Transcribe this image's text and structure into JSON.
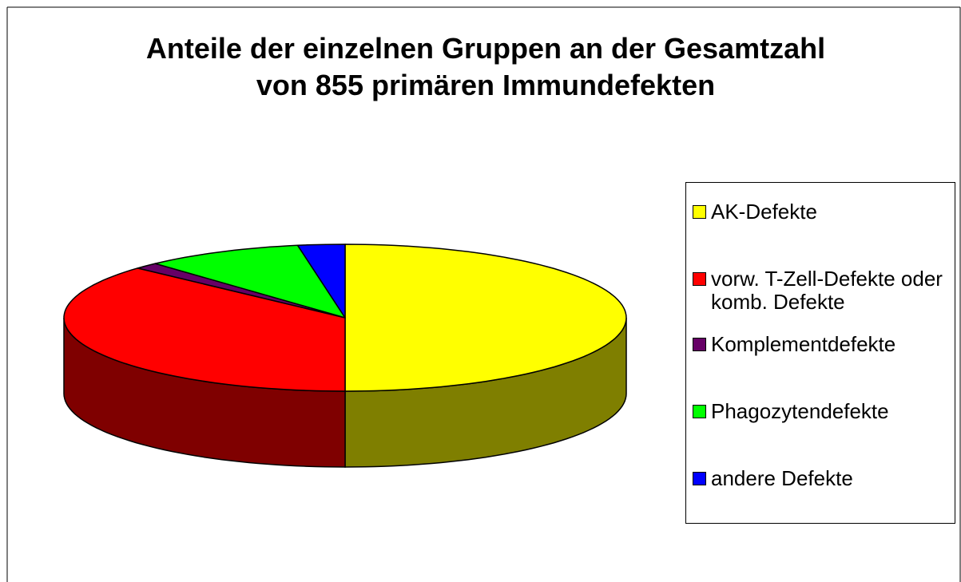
{
  "chart_data": {
    "type": "pie",
    "title": "Anteile der einzelnen Gruppen an der Gesamtzahl von 855 primären Immundefekten",
    "categories": [
      "AK-Defekte",
      "vorw. T-Zell-Defekte oder komb. Defekte",
      "Komplementdefekte",
      "Phagozytendefekte",
      "andere Defekte"
    ],
    "values": [
      50,
      36.8,
      1.4,
      9.1,
      2.7
    ],
    "colors": [
      "#ffff00",
      "#ff0000",
      "#660066",
      "#00ff00",
      "#0000ff"
    ],
    "legend": "right"
  }
}
